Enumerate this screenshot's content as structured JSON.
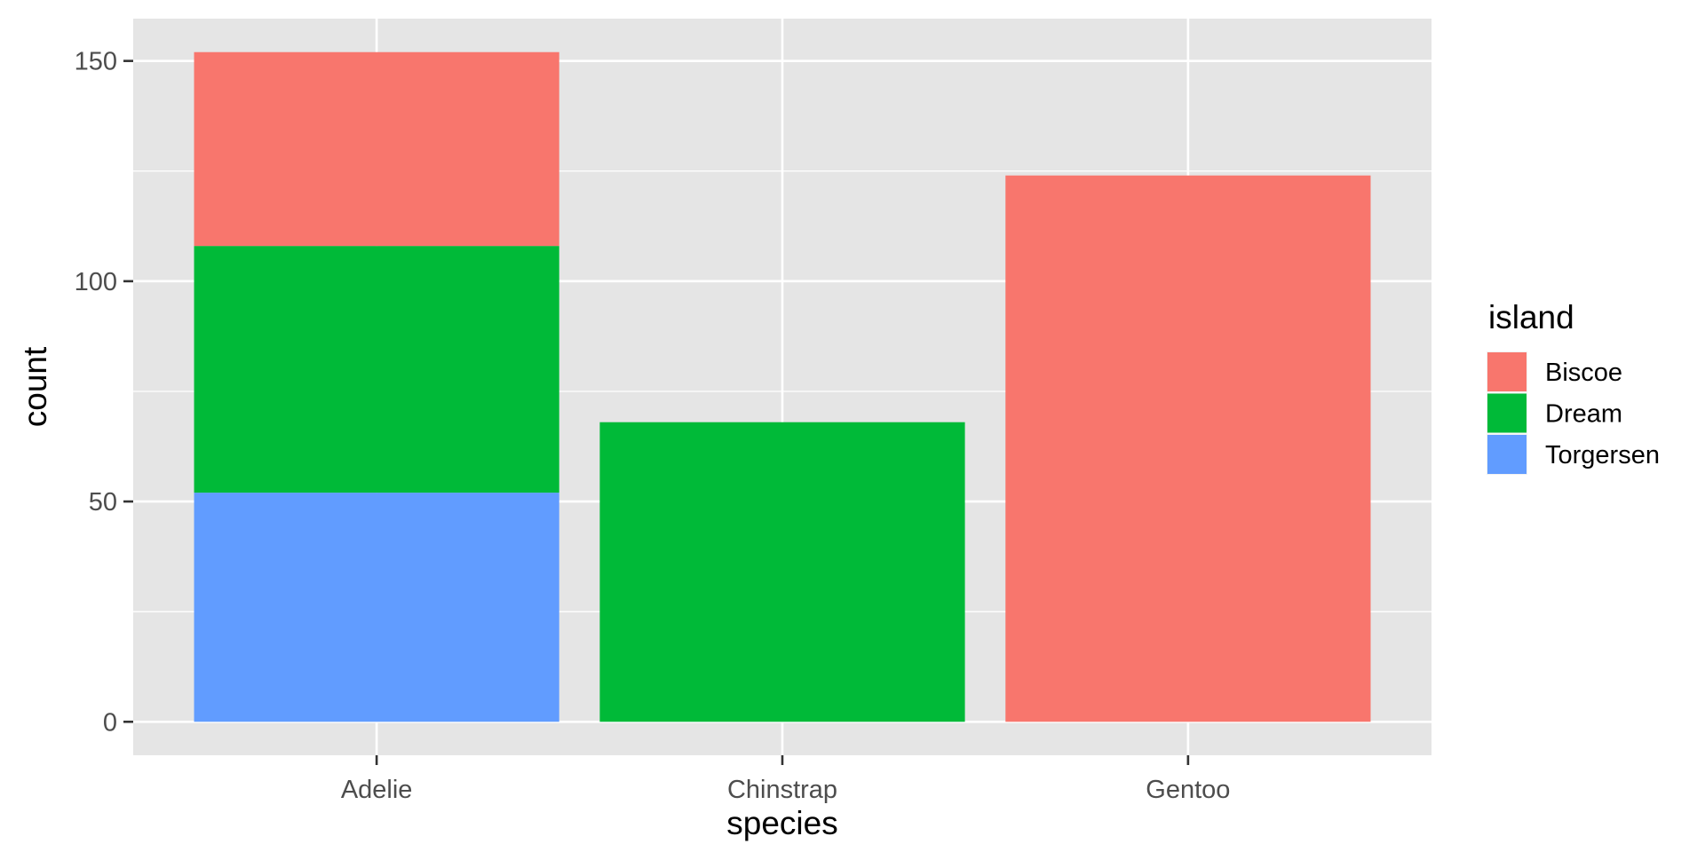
{
  "chart_data": {
    "type": "bar",
    "stacked": true,
    "categories": [
      "Adelie",
      "Chinstrap",
      "Gentoo"
    ],
    "series": [
      {
        "name": "Biscoe",
        "values": [
          44,
          0,
          124
        ],
        "color": "#F8766D"
      },
      {
        "name": "Dream",
        "values": [
          56,
          68,
          0
        ],
        "color": "#00BA38"
      },
      {
        "name": "Torgersen",
        "values": [
          52,
          0,
          0
        ],
        "color": "#619CFF"
      }
    ],
    "xlabel": "species",
    "ylabel": "count",
    "ylim": [
      -7.6,
      159.6
    ],
    "yticks": [
      0,
      50,
      100,
      150
    ],
    "yticks_text": [
      "0",
      "50",
      "100",
      "150"
    ],
    "legend_title": "island",
    "legend_position": "right",
    "panel_background": "#E5E5E5",
    "grid": true
  }
}
